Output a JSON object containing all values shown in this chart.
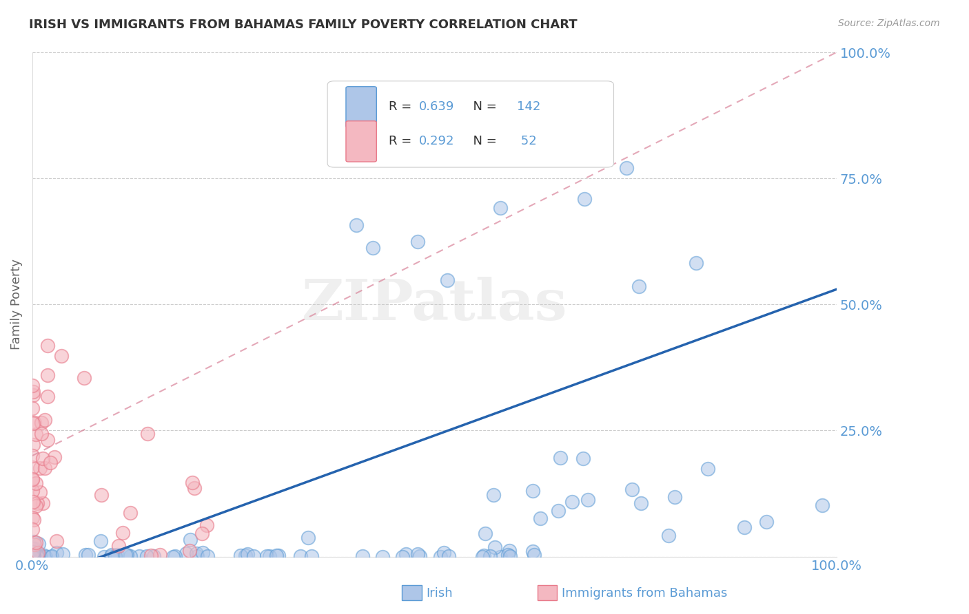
{
  "title": "IRISH VS IMMIGRANTS FROM BAHAMAS FAMILY POVERTY CORRELATION CHART",
  "source": "Source: ZipAtlas.com",
  "ylabel": "Family Poverty",
  "irish_R": 0.639,
  "irish_N": 142,
  "bahamas_R": 0.292,
  "bahamas_N": 52,
  "irish_fill": "#aec6e8",
  "irish_edge": "#5b9bd5",
  "bahamas_fill": "#f4b8c1",
  "bahamas_edge": "#e87a8a",
  "irish_trend_color": "#2563ae",
  "bahamas_trend_color": "#d9849a",
  "background_color": "#ffffff",
  "grid_color": "#cccccc",
  "watermark": "ZIPatlas",
  "tick_color": "#5b9bd5",
  "title_color": "#333333"
}
